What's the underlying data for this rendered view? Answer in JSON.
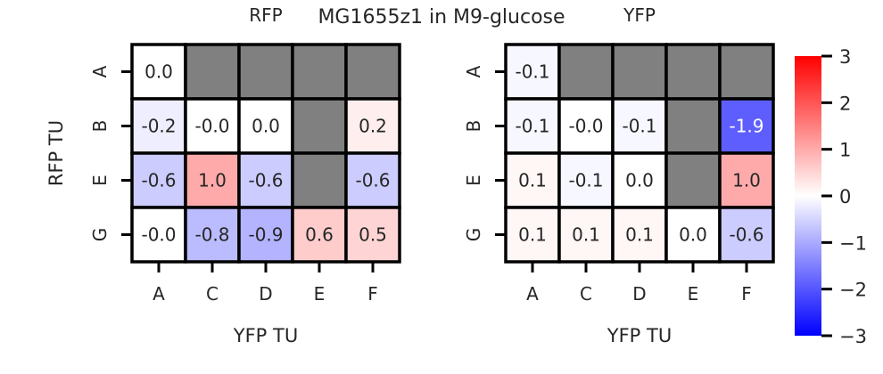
{
  "figure": {
    "suptitle": "MG1655z1 in M9-glucose"
  },
  "chart_data": [
    {
      "type": "heatmap",
      "title": "RFP",
      "xlabel": "YFP TU",
      "ylabel": "RFP TU",
      "x_categories": [
        "A",
        "C",
        "D",
        "E",
        "F"
      ],
      "y_categories": [
        "A",
        "B",
        "E",
        "G"
      ],
      "cells": [
        [
          "0.0",
          null,
          null,
          null,
          null
        ],
        [
          "-0.2",
          "-0.0",
          "0.0",
          null,
          "0.2"
        ],
        [
          "-0.6",
          "1.0",
          "-0.6",
          null,
          "-0.6"
        ],
        [
          "-0.0",
          "-0.8",
          "-0.9",
          "0.6",
          "0.5"
        ]
      ],
      "missing_color": "#808080"
    },
    {
      "type": "heatmap",
      "title": "YFP",
      "xlabel": "YFP TU",
      "ylabel": "",
      "x_categories": [
        "A",
        "C",
        "D",
        "E",
        "F"
      ],
      "y_categories": [
        "A",
        "B",
        "E",
        "G"
      ],
      "cells": [
        [
          "-0.1",
          null,
          null,
          null,
          null
        ],
        [
          "-0.1",
          "-0.0",
          "-0.1",
          null,
          "-1.9"
        ],
        [
          "0.1",
          "-0.1",
          "0.0",
          null,
          "1.0"
        ],
        [
          "0.1",
          "0.1",
          "0.1",
          "0.0",
          "-0.6"
        ]
      ],
      "missing_color": "#808080"
    }
  ],
  "colorbar": {
    "colormap": "bwr",
    "vmin": -3,
    "vmax": 3,
    "ticks": [
      3,
      2,
      1,
      0,
      -1,
      -2,
      -3
    ],
    "tick_labels": [
      "3",
      "2",
      "1",
      "0",
      "−1",
      "−2",
      "−3"
    ],
    "color_low": "#0000ff",
    "color_mid": "#ffffff",
    "color_high": "#ff0000"
  }
}
